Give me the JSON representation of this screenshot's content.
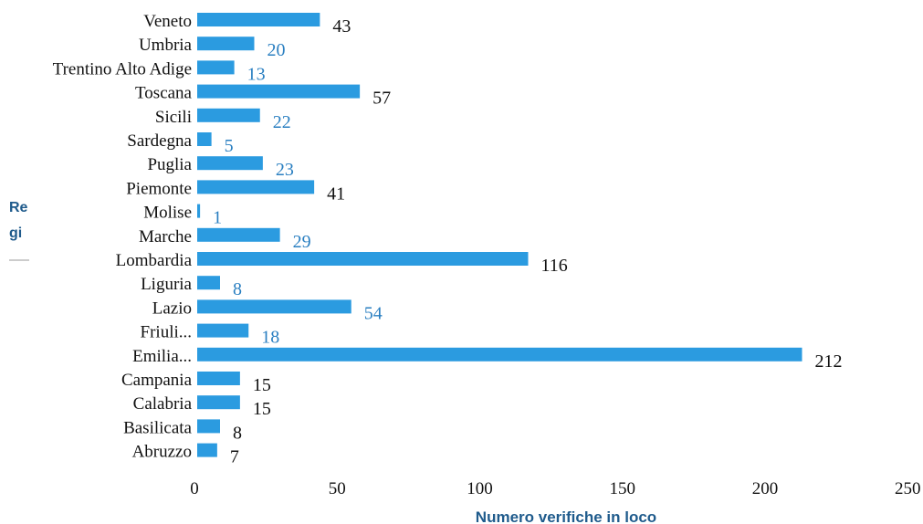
{
  "chart_data": {
    "type": "bar",
    "orientation": "horizontal",
    "categories": [
      "Veneto",
      "Umbria",
      "Trentino Alto Adige",
      "Toscana",
      "Sicili",
      "Sardegna",
      "Puglia",
      "Piemonte",
      "Molise",
      "Marche",
      "Lombardia",
      "Liguria",
      "Lazio",
      "Friuli...",
      "Emilia...",
      "Campania",
      "Calabria",
      "Basilicata",
      "Abruzzo"
    ],
    "values": [
      43,
      20,
      13,
      57,
      22,
      5,
      23,
      41,
      1,
      29,
      116,
      8,
      54,
      18,
      212,
      15,
      15,
      8,
      7
    ],
    "value_label_colors": [
      "#111111",
      "#2a7fc1",
      "#2a7fc1",
      "#111111",
      "#2a7fc1",
      "#2a7fc1",
      "#2a7fc1",
      "#111111",
      "#2a7fc1",
      "#2a7fc1",
      "#111111",
      "#2a7fc1",
      "#2a7fc1",
      "#2a7fc1",
      "#111111",
      "#111111",
      "#111111",
      "#111111",
      "#111111"
    ],
    "xlabel": "Numero verifiche in loco",
    "ylabel_fragments": [
      "Re",
      "gi"
    ],
    "xlim": [
      0,
      250
    ],
    "xticks": [
      0,
      50,
      100,
      150,
      200,
      250
    ],
    "bar_color": "#2b9be0",
    "grid": false,
    "legend": "none"
  }
}
